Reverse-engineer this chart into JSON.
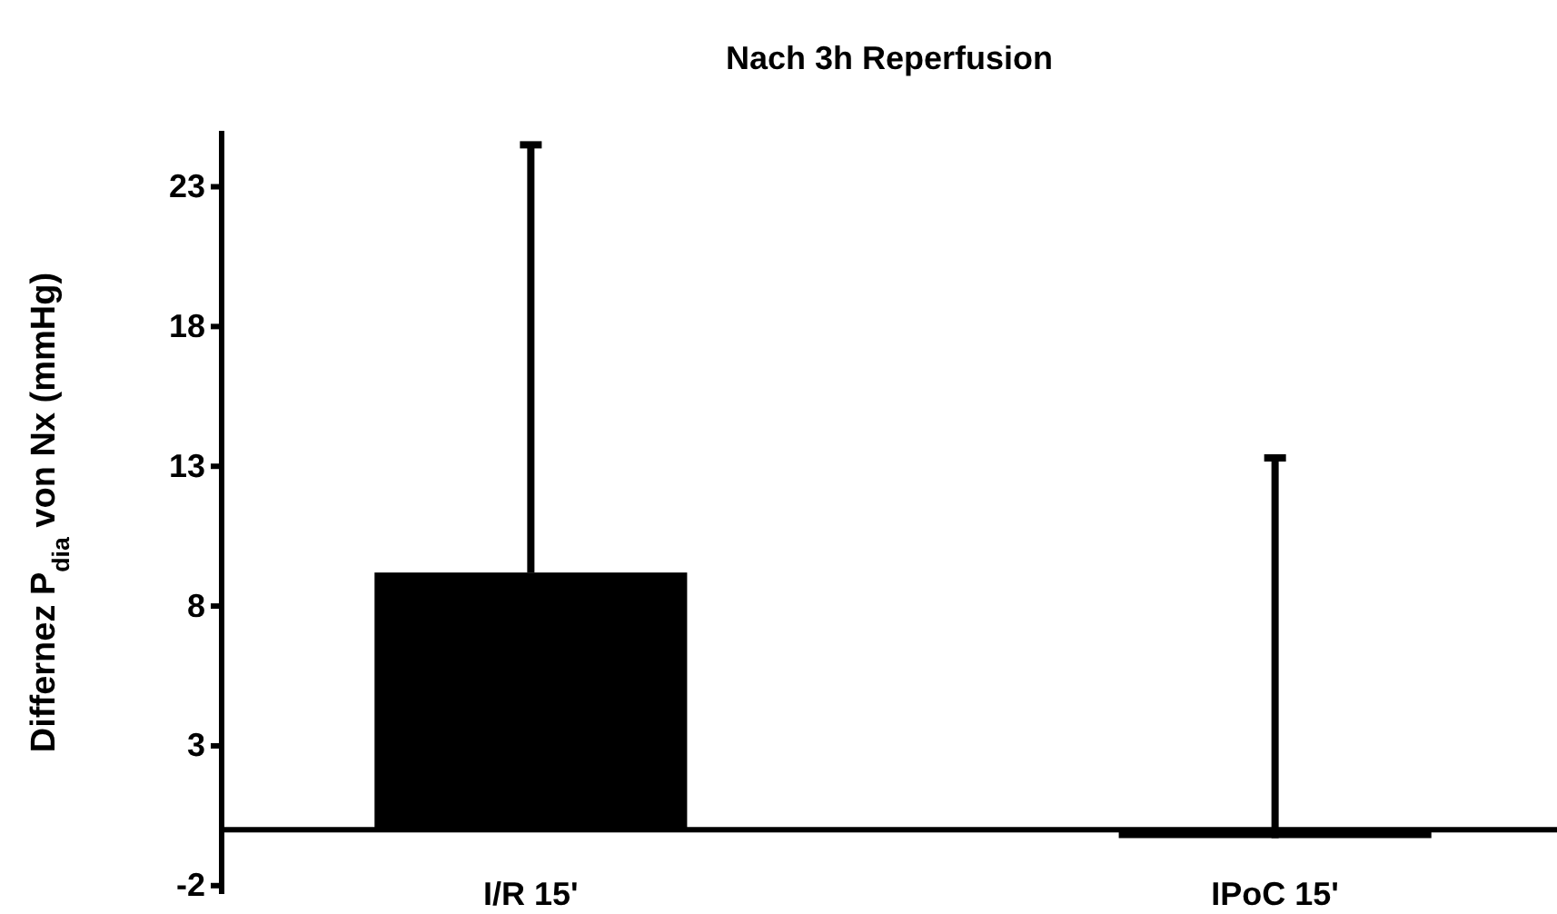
{
  "chart_data": {
    "type": "bar",
    "title": "Nach 3h Reperfusion",
    "ylabel": "Differnez P$_{dia}$ von Nx (mmHg)",
    "categories": [
      "I/R 15'",
      "IPoC 15'"
    ],
    "values": [
      9.2,
      -0.3
    ],
    "color": "#000000",
    "errors": [
      [
        9.2,
        24.5
      ],
      [
        -0.3,
        13.3
      ]
    ],
    "ylim": [
      -2.3,
      25
    ],
    "yticks": [
      -2,
      3,
      8,
      13,
      18,
      23
    ],
    "grid": false
  }
}
